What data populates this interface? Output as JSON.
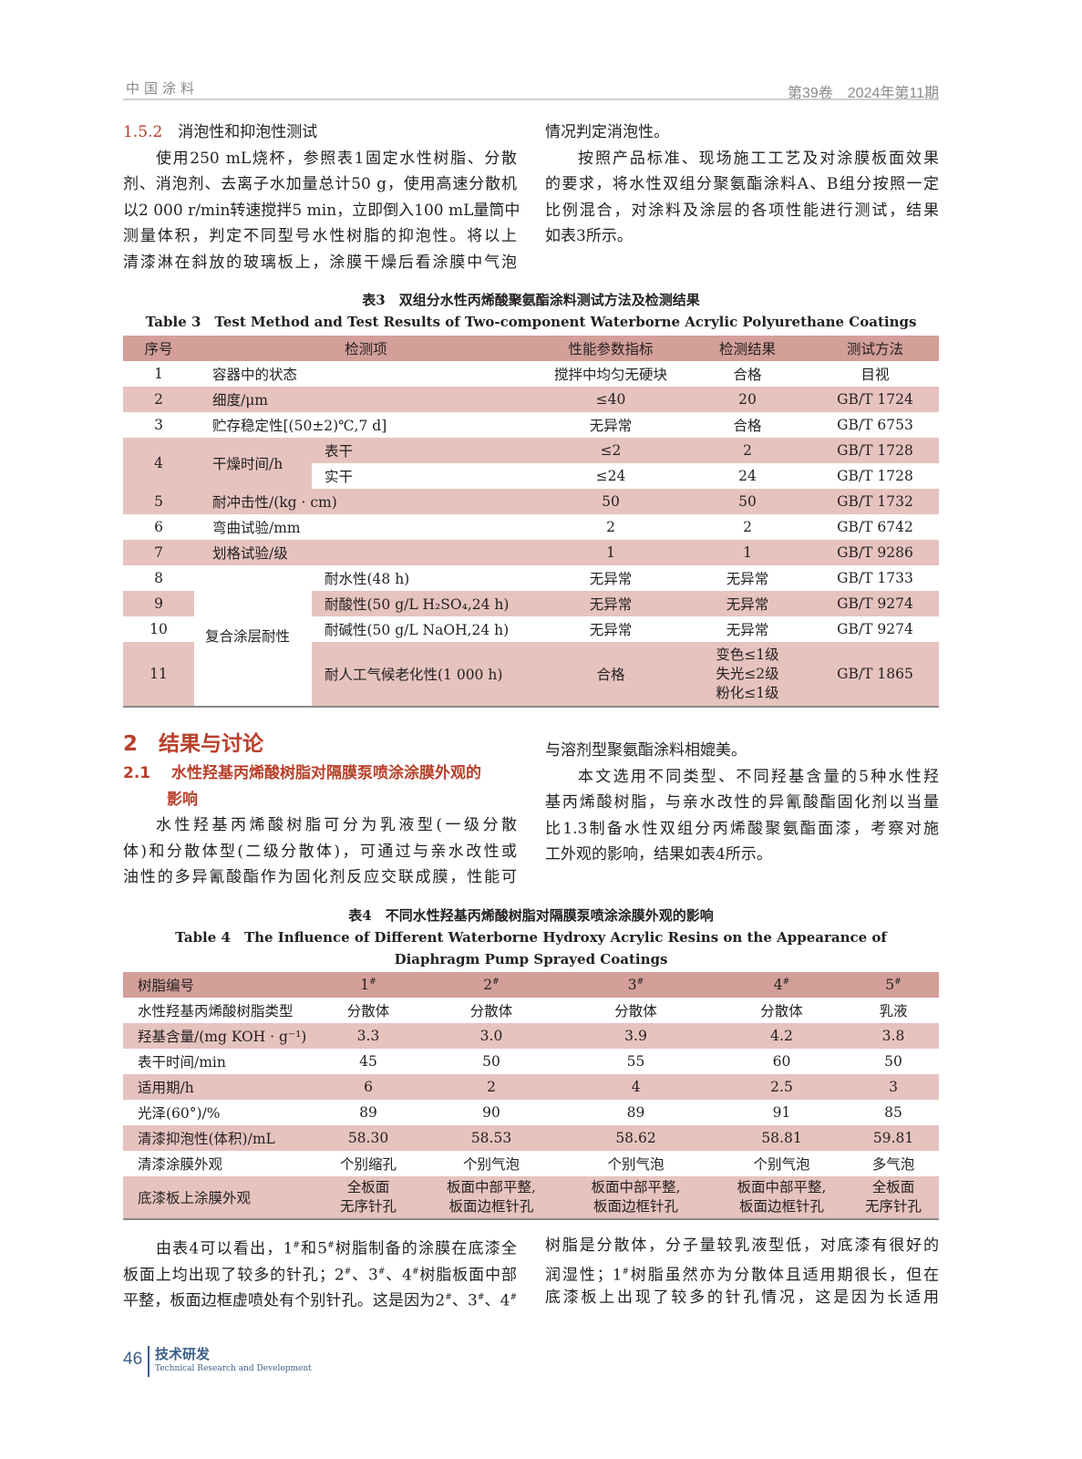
{
  "header": {
    "journal": "中国涂料",
    "issue": "第39卷　2024年第11期"
  },
  "left_top": {
    "num": "1.5.2",
    "title": "消泡性和抑泡性测试",
    "lines": [
      "使用250 mL烧杯，参照表1固定水性树脂、分散",
      "剂、消泡剂、去离子水加量总计50 g，使用高速分散机",
      "以2 000 r/min转速搅拌5 min，立即倒入100 mL量筒中",
      "测量体积，判定不同型号水性树脂的抑泡性。将以上",
      "清漆淋在斜放的玻璃板上，涂膜干燥后看涂膜中气泡"
    ]
  },
  "right_top": {
    "lines": [
      "情况判定消泡性。",
      "按照产品标准、现场施工工艺及对涂膜板面效果",
      "的要求，将水性双组分聚氨酯涂料A、B组分按照一定",
      "比例混合，对涂料及涂层的各项性能进行测试，结果",
      "如表3所示。"
    ]
  },
  "table3": {
    "caption_cn": "表3　双组分水性丙烯酸聚氨酯涂料测试方法及检测结果",
    "caption_en": "Table 3　Test Method and Test Results of Two-component Waterborne Acrylic Polyurethane Coatings",
    "headers": [
      "序号",
      "检测项",
      "性能参数指标",
      "检测结果",
      "测试方法"
    ],
    "rows": [
      {
        "no": "1",
        "item": "容器中的状态",
        "spec": "搅拌中均匀无硬块",
        "result": "合格",
        "method": "目视"
      },
      {
        "no": "2",
        "item": "细度/μm",
        "spec": "≤40",
        "result": "20",
        "method": "GB/T 1724"
      },
      {
        "no": "3",
        "item": "贮存稳定性[(50±2)℃,7 d]",
        "spec": "无异常",
        "result": "合格",
        "method": "GB/T 6753"
      },
      {
        "no": "4",
        "item": "干燥时间/h",
        "sub": "表干",
        "spec": "≤2",
        "result": "2",
        "method": "GB/T 1728"
      },
      {
        "sub": "实干",
        "spec": "≤24",
        "result": "24",
        "method": "GB/T 1728"
      },
      {
        "no": "5",
        "item": "耐冲击性/(kg · cm)",
        "spec": "50",
        "result": "50",
        "method": "GB/T 1732"
      },
      {
        "no": "6",
        "item": "弯曲试验/mm",
        "spec": "2",
        "result": "2",
        "method": "GB/T 6742"
      },
      {
        "no": "7",
        "item": "划格试验/级",
        "spec": "1",
        "result": "1",
        "method": "GB/T 9286"
      },
      {
        "no": "8",
        "item": "复合涂层耐性",
        "sub": "耐水性(48 h)",
        "spec": "无异常",
        "result": "无异常",
        "method": "GB/T 1733"
      },
      {
        "no": "9",
        "sub": "耐酸性(50 g/L H₂SO₄,24 h)",
        "spec": "无异常",
        "result": "无异常",
        "method": "GB/T 9274"
      },
      {
        "no": "10",
        "sub": "耐碱性(50 g/L NaOH,24 h)",
        "spec": "无异常",
        "result": "无异常",
        "method": "GB/T 9274"
      },
      {
        "no": "11",
        "sub": "耐人工气候老化性(1 000 h)",
        "spec": "合格",
        "result_lines": [
          "变色≤1级",
          "失光≤2级",
          "粉化≤1级"
        ],
        "method": "GB/T 1865"
      }
    ]
  },
  "section2": {
    "num": "2",
    "title": "结果与讨论"
  },
  "section21": {
    "num": "2.1",
    "title_lines": [
      "水性羟基丙烯酸树脂对隔膜泵喷涂涂膜外观的",
      "影响"
    ]
  },
  "left_mid": {
    "lines": [
      "水性羟基丙烯酸树脂可分为乳液型(一级分散",
      "体)和分散体型(二级分散体)，可通过与亲水改性或",
      "油性的多异氰酸酯作为固化剂反应交联成膜，性能可"
    ]
  },
  "right_mid": {
    "lines": [
      "与溶剂型聚氨酯涂料相媲美。",
      "本文选用不同类型、不同羟基含量的5种水性羟",
      "基丙烯酸树脂，与亲水改性的异氰酸酯固化剂以当量",
      "比1.3制备水性双组分丙烯酸聚氨酯面漆，考察对施",
      "工外观的影响，结果如表4所示。"
    ]
  },
  "table4": {
    "caption_cn": "表4　不同水性羟基丙烯酸树脂对隔膜泵喷涂涂膜外观的影响",
    "caption_en_1": "Table 4　The Influence of Different Waterborne Hydroxy Acrylic Resins on the Appearance of",
    "caption_en_2": "Diaphragm Pump Sprayed Coatings",
    "header": {
      "label": "树脂编号",
      "cols": [
        "1#",
        "2#",
        "3#",
        "4#",
        "5#"
      ]
    },
    "rows": [
      {
        "label": "水性羟基丙烯酸树脂类型",
        "values": [
          "分散体",
          "分散体",
          "分散体",
          "分散体",
          "乳液"
        ]
      },
      {
        "label": "羟基含量/(mg KOH · g⁻¹)",
        "values": [
          "3.3",
          "3.0",
          "3.9",
          "4.2",
          "3.8"
        ]
      },
      {
        "label": "表干时间/min",
        "values": [
          "45",
          "50",
          "55",
          "60",
          "50"
        ]
      },
      {
        "label": "适用期/h",
        "values": [
          "6",
          "2",
          "4",
          "2.5",
          "3"
        ]
      },
      {
        "label": "光泽(60°)/%",
        "values": [
          "89",
          "90",
          "89",
          "91",
          "85"
        ]
      },
      {
        "label": "清漆抑泡性(体积)/mL",
        "values": [
          "58.30",
          "58.53",
          "58.62",
          "58.81",
          "59.81"
        ]
      },
      {
        "label": "清漆涂膜外观",
        "values": [
          "个别缩孔",
          "个别气泡",
          "个别气泡",
          "个别气泡",
          "多气泡"
        ]
      },
      {
        "label": "底漆板上涂膜外观",
        "values": [
          [
            "全板面",
            "无序针孔"
          ],
          [
            "板面中部平整,",
            "板面边框针孔"
          ],
          [
            "板面中部平整,",
            "板面边框针孔"
          ],
          [
            "板面中部平整,",
            "板面边框针孔"
          ],
          [
            "全板面",
            "无序针孔"
          ]
        ]
      }
    ]
  },
  "left_bot": {
    "lines": [
      "由表4可以看出，1#和5#树脂制备的涂膜在底漆全",
      "板面上均出现了较多的针孔；2#、3#、4#树脂板面中部",
      "平整，板面边框虚喷处有个别针孔。这是因为2#、3#、4#"
    ]
  },
  "right_bot": {
    "lines": [
      "树脂是分散体，分子量较乳液型低，对底漆有很好的",
      "润湿性；1#树脂虽然亦为分散体且适用期很长，但在",
      "底漆板上出现了较多的针孔情况，这是因为长适用"
    ]
  },
  "footer": {
    "page": "46",
    "section_cn": "技术研发",
    "section_en": "Technical Research and Development"
  },
  "colors": {
    "accent": "#b8402a",
    "table_header": "#d49f99",
    "table_shade": "#e6c3bf",
    "footer": "#3b5f8a"
  }
}
